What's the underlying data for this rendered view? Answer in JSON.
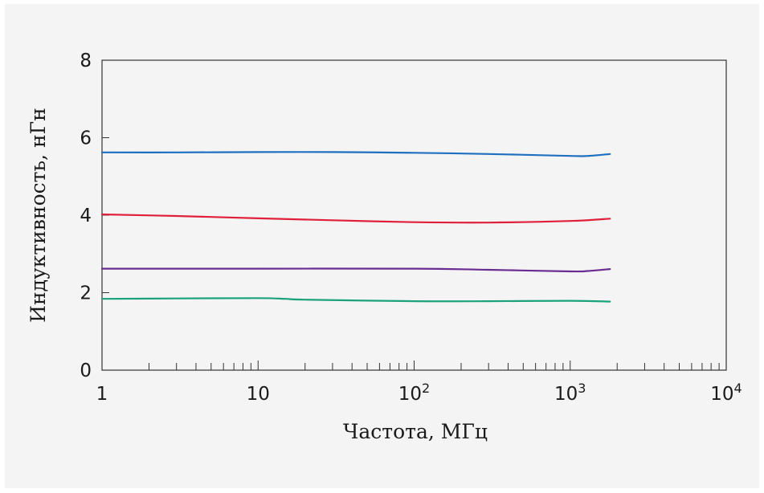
{
  "chart_data": {
    "type": "line",
    "xscale": "log",
    "xlim": [
      1,
      10000
    ],
    "ylim": [
      0,
      8
    ],
    "grid": false,
    "xlabel": "Частота, МГц",
    "ylabel": "Индуктивность, нГн",
    "x_tick_labels": [
      {
        "value": 1,
        "base": "1",
        "exp": ""
      },
      {
        "value": 10,
        "base": "10",
        "exp": ""
      },
      {
        "value": 100,
        "base": "10",
        "exp": "2"
      },
      {
        "value": 1000,
        "base": "10",
        "exp": "3"
      },
      {
        "value": 10000,
        "base": "10",
        "exp": "4"
      }
    ],
    "y_ticks": [
      0,
      2,
      4,
      6,
      8
    ],
    "series": [
      {
        "color": "#1f6fc0",
        "points": [
          [
            1,
            5.62
          ],
          [
            3,
            5.62
          ],
          [
            10,
            5.63
          ],
          [
            30,
            5.63
          ],
          [
            100,
            5.61
          ],
          [
            300,
            5.58
          ],
          [
            1000,
            5.53
          ],
          [
            1300,
            5.53
          ],
          [
            1800,
            5.58
          ]
        ]
      },
      {
        "color": "#e0203a",
        "points": [
          [
            1,
            4.02
          ],
          [
            3,
            3.98
          ],
          [
            10,
            3.92
          ],
          [
            30,
            3.87
          ],
          [
            100,
            3.82
          ],
          [
            300,
            3.81
          ],
          [
            1000,
            3.85
          ],
          [
            1800,
            3.91
          ]
        ]
      },
      {
        "color": "#6a2c91",
        "points": [
          [
            1,
            2.62
          ],
          [
            10,
            2.62
          ],
          [
            100,
            2.62
          ],
          [
            300,
            2.59
          ],
          [
            1000,
            2.55
          ],
          [
            1300,
            2.56
          ],
          [
            1800,
            2.61
          ]
        ]
      },
      {
        "color": "#1aa37a",
        "points": [
          [
            1,
            1.84
          ],
          [
            3,
            1.85
          ],
          [
            10,
            1.86
          ],
          [
            15,
            1.84
          ],
          [
            20,
            1.82
          ],
          [
            100,
            1.78
          ],
          [
            300,
            1.78
          ],
          [
            1000,
            1.79
          ],
          [
            1800,
            1.77
          ]
        ]
      }
    ]
  }
}
